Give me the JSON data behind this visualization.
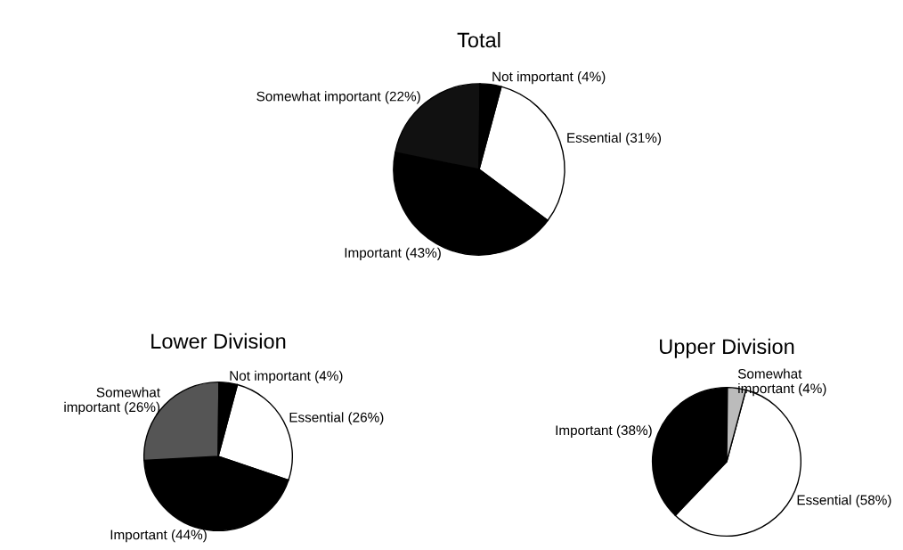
{
  "chart_data": [
    {
      "type": "pie",
      "title": "Total",
      "categories": [
        "Essential (31%)",
        "Important (43%)",
        "Somewhat important (22%)",
        "Not important (4%)"
      ],
      "values": [
        31,
        43,
        22,
        4
      ],
      "colors": [
        "#ffffff",
        "#000000",
        "#111111",
        "#000000"
      ]
    },
    {
      "type": "pie",
      "title": "Lower Division",
      "categories": [
        "Essential (26%)",
        "Important (44%)",
        "Somewhat\nimportant (26%)",
        "Not important (4%)"
      ],
      "values": [
        26,
        44,
        26,
        4
      ],
      "colors": [
        "#ffffff",
        "#000000",
        "#555555",
        "#000000"
      ]
    },
    {
      "type": "pie",
      "title": "Upper Division",
      "categories": [
        "Essential (58%)",
        "Important (38%)",
        "Somewhat\nimportant (4%)"
      ],
      "values": [
        58,
        38,
        4
      ],
      "colors": [
        "#ffffff",
        "#000000",
        "#bbbbbb"
      ]
    }
  ]
}
